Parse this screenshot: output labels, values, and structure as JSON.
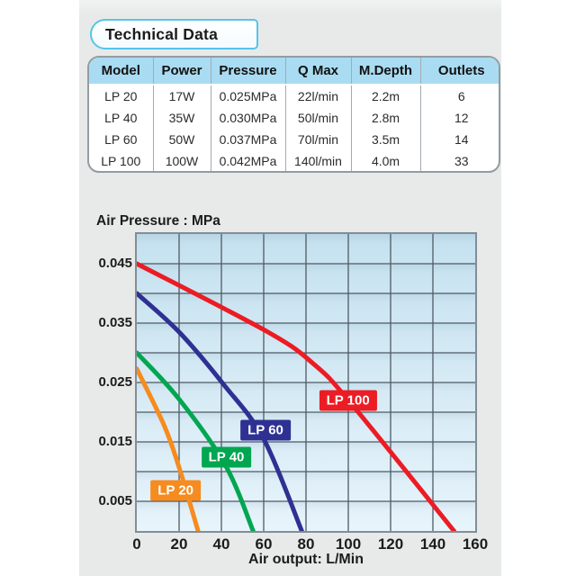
{
  "header": {
    "title": "Technical Data"
  },
  "table": {
    "headers": [
      "Model",
      "Power",
      "Pressure",
      "Q Max",
      "M.Depth",
      "Outlets"
    ],
    "rows": [
      [
        "LP 20",
        "17W",
        "0.025MPa",
        "22l/min",
        "2.2m",
        "6"
      ],
      [
        "LP 40",
        "35W",
        "0.030MPa",
        "50l/min",
        "2.8m",
        "12"
      ],
      [
        "LP 60",
        "50W",
        "0.037MPa",
        "70l/min",
        "3.5m",
        "14"
      ],
      [
        "LP 100",
        "100W",
        "0.042MPa",
        "140l/min",
        "4.0m",
        "33"
      ]
    ],
    "header_bg": "#a9dcf2"
  },
  "chart_data": {
    "type": "line",
    "title": "Air Pressure : MPa",
    "xlabel": "Air output: L/Min",
    "ylabel": "Air Pressure : MPa",
    "xlim": [
      0,
      160
    ],
    "ylim": [
      0,
      0.05
    ],
    "x_ticks": [
      0,
      20,
      40,
      60,
      80,
      100,
      120,
      140,
      160
    ],
    "y_ticks": [
      0.045,
      0.035,
      0.025,
      0.015,
      0.005
    ],
    "grid": true,
    "grid_step_x": 20,
    "grid_step_y": 0.005,
    "legend": "inline-labels",
    "gridline_color": "#4f5a63",
    "series": [
      {
        "name": "LP 20",
        "color": "#f68b1f",
        "points": [
          [
            0,
            0.0273
          ],
          [
            13,
            0.0177
          ],
          [
            20,
            0.0107
          ],
          [
            29,
            0
          ]
        ],
        "label_pos": [
          17.5,
          0.0071
        ]
      },
      {
        "name": "LP 40",
        "color": "#00a650",
        "points": [
          [
            0,
            0.03
          ],
          [
            20,
            0.0222
          ],
          [
            42,
            0.011
          ],
          [
            55,
            0
          ]
        ],
        "label_pos": [
          41.5,
          0.0127
        ]
      },
      {
        "name": "LP 60",
        "color": "#2e3192",
        "points": [
          [
            0,
            0.04
          ],
          [
            20,
            0.0335
          ],
          [
            41,
            0.0247
          ],
          [
            60,
            0.0155
          ],
          [
            78,
            0
          ]
        ],
        "label_pos": [
          60.0,
          0.0173
        ]
      },
      {
        "name": "LP 100",
        "color": "#ec1c24",
        "points": [
          [
            0,
            0.045
          ],
          [
            62,
            0.0335
          ],
          [
            84,
            0.028
          ],
          [
            101,
            0.0216
          ],
          [
            150,
            0
          ]
        ],
        "label_pos": [
          99.0,
          0.0222
        ]
      }
    ]
  }
}
